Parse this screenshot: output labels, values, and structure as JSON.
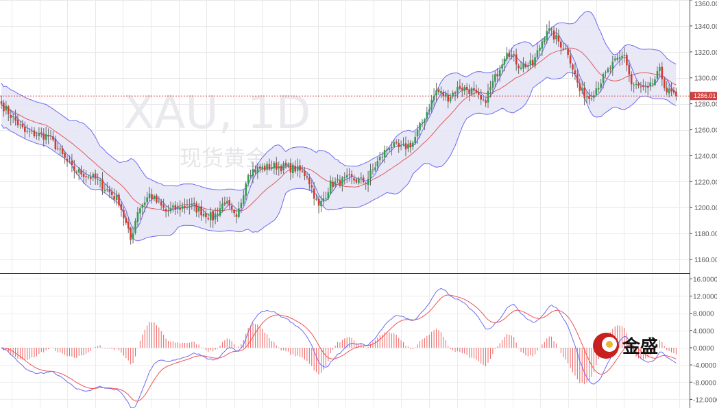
{
  "chart_data": [
    {
      "type": "candlestick",
      "watermark": {
        "symbol": "XAU, 1D",
        "name": "现货黄金"
      },
      "ylim": [
        1150,
        1360
      ],
      "y_ticks": [
        "1160.00",
        "1180.00",
        "1200.00",
        "1220.00",
        "1240.00",
        "1260.00",
        "1280.00",
        "1300.00",
        "1320.00",
        "1340.00",
        "1360.00"
      ],
      "current_price": {
        "value": 1286.01,
        "label": "1286.01"
      },
      "indicators": [
        "Bollinger Bands",
        "Moving Average"
      ],
      "anchors": [
        {
          "i": 0,
          "c": 1280
        },
        {
          "i": 10,
          "c": 1258
        },
        {
          "i": 20,
          "c": 1255
        },
        {
          "i": 30,
          "c": 1230
        },
        {
          "i": 40,
          "c": 1222
        },
        {
          "i": 50,
          "c": 1205
        },
        {
          "i": 55,
          "c": 1175
        },
        {
          "i": 58,
          "c": 1198
        },
        {
          "i": 63,
          "c": 1210
        },
        {
          "i": 70,
          "c": 1197
        },
        {
          "i": 80,
          "c": 1202
        },
        {
          "i": 90,
          "c": 1192
        },
        {
          "i": 95,
          "c": 1205
        },
        {
          "i": 100,
          "c": 1190
        },
        {
          "i": 105,
          "c": 1228
        },
        {
          "i": 110,
          "c": 1230
        },
        {
          "i": 117,
          "c": 1232
        },
        {
          "i": 125,
          "c": 1230
        },
        {
          "i": 130,
          "c": 1225
        },
        {
          "i": 135,
          "c": 1200
        },
        {
          "i": 140,
          "c": 1218
        },
        {
          "i": 148,
          "c": 1222
        },
        {
          "i": 155,
          "c": 1220
        },
        {
          "i": 160,
          "c": 1235
        },
        {
          "i": 165,
          "c": 1248
        },
        {
          "i": 170,
          "c": 1245
        },
        {
          "i": 175,
          "c": 1250
        },
        {
          "i": 180,
          "c": 1270
        },
        {
          "i": 185,
          "c": 1290
        },
        {
          "i": 190,
          "c": 1285
        },
        {
          "i": 195,
          "c": 1293
        },
        {
          "i": 200,
          "c": 1290
        },
        {
          "i": 205,
          "c": 1280
        },
        {
          "i": 210,
          "c": 1300
        },
        {
          "i": 215,
          "c": 1322
        },
        {
          "i": 220,
          "c": 1310
        },
        {
          "i": 226,
          "c": 1310
        },
        {
          "i": 232,
          "c": 1338
        },
        {
          "i": 236,
          "c": 1330
        },
        {
          "i": 241,
          "c": 1320
        },
        {
          "i": 246,
          "c": 1290
        },
        {
          "i": 250,
          "c": 1285
        },
        {
          "i": 254,
          "c": 1295
        },
        {
          "i": 260,
          "c": 1310
        },
        {
          "i": 265,
          "c": 1318
        },
        {
          "i": 268,
          "c": 1295
        },
        {
          "i": 275,
          "c": 1290
        },
        {
          "i": 280,
          "c": 1305
        },
        {
          "i": 283,
          "c": 1290
        },
        {
          "i": 287,
          "c": 1286
        }
      ]
    },
    {
      "type": "macd",
      "ylim": [
        -14,
        17
      ],
      "y_ticks": [
        "16.0000",
        "12.0000",
        "8.0000",
        "4.0000",
        "0.0000",
        "-4.0000",
        "-8.0000",
        "-12.0000"
      ],
      "macd_line": {
        "color": "#6a6af0"
      },
      "signal_line": {
        "color": "#f05050"
      },
      "histogram": {
        "color": "#f06060"
      }
    }
  ],
  "colors": {
    "bull": "#2f9e4f",
    "bear": "#d43a2f",
    "band_fill": "#e6e6f6",
    "band_line": "#6a6af0",
    "ma_line": "#e05a5a",
    "price_line": "#d04040"
  },
  "logo": {
    "text": "金盛"
  }
}
